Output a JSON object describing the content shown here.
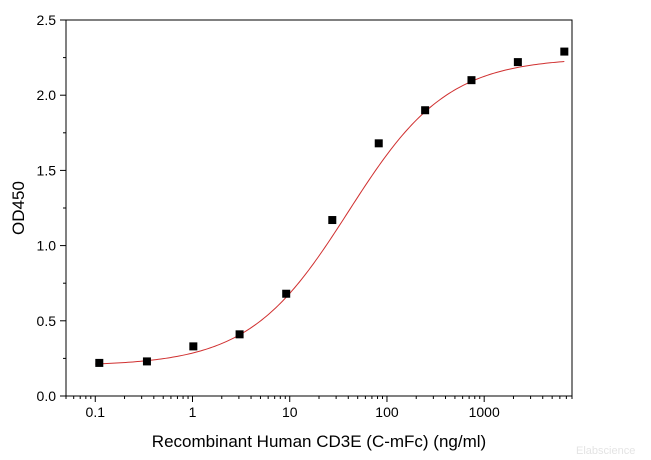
{
  "chart_data": {
    "type": "scatter",
    "xlabel": "Recombinant Human CD3E (C-mFc) (ng/ml)",
    "ylabel": "OD450",
    "x_scale": "log",
    "xlim": [
      0.05,
      8000
    ],
    "ylim": [
      0,
      2.5
    ],
    "x_ticks": [
      {
        "value": 0.1,
        "label": "0.1"
      },
      {
        "value": 1,
        "label": "1"
      },
      {
        "value": 10,
        "label": "10"
      },
      {
        "value": 100,
        "label": "100"
      },
      {
        "value": 1000,
        "label": "1000"
      }
    ],
    "y_ticks": [
      {
        "value": 0,
        "label": "0.0"
      },
      {
        "value": 0.5,
        "label": "0.5"
      },
      {
        "value": 1.0,
        "label": "1.0"
      },
      {
        "value": 1.5,
        "label": "1.5"
      },
      {
        "value": 2.0,
        "label": "2.0"
      },
      {
        "value": 2.5,
        "label": "2.5"
      }
    ],
    "points": [
      {
        "x": 0.11,
        "y": 0.22
      },
      {
        "x": 0.34,
        "y": 0.23
      },
      {
        "x": 1.02,
        "y": 0.33
      },
      {
        "x": 3.05,
        "y": 0.41
      },
      {
        "x": 9.2,
        "y": 0.68
      },
      {
        "x": 27.4,
        "y": 1.17
      },
      {
        "x": 82.3,
        "y": 1.68
      },
      {
        "x": 247,
        "y": 1.9
      },
      {
        "x": 740,
        "y": 2.1
      },
      {
        "x": 2220,
        "y": 2.22
      },
      {
        "x": 6670,
        "y": 2.29
      }
    ],
    "fit_curve": {
      "bottom": 0.2,
      "top": 2.25,
      "ec50": 40,
      "hill": 0.85
    },
    "grid": false,
    "marker_color": "#000000",
    "curve_color": "#d03030"
  },
  "watermark": "Elabscience"
}
